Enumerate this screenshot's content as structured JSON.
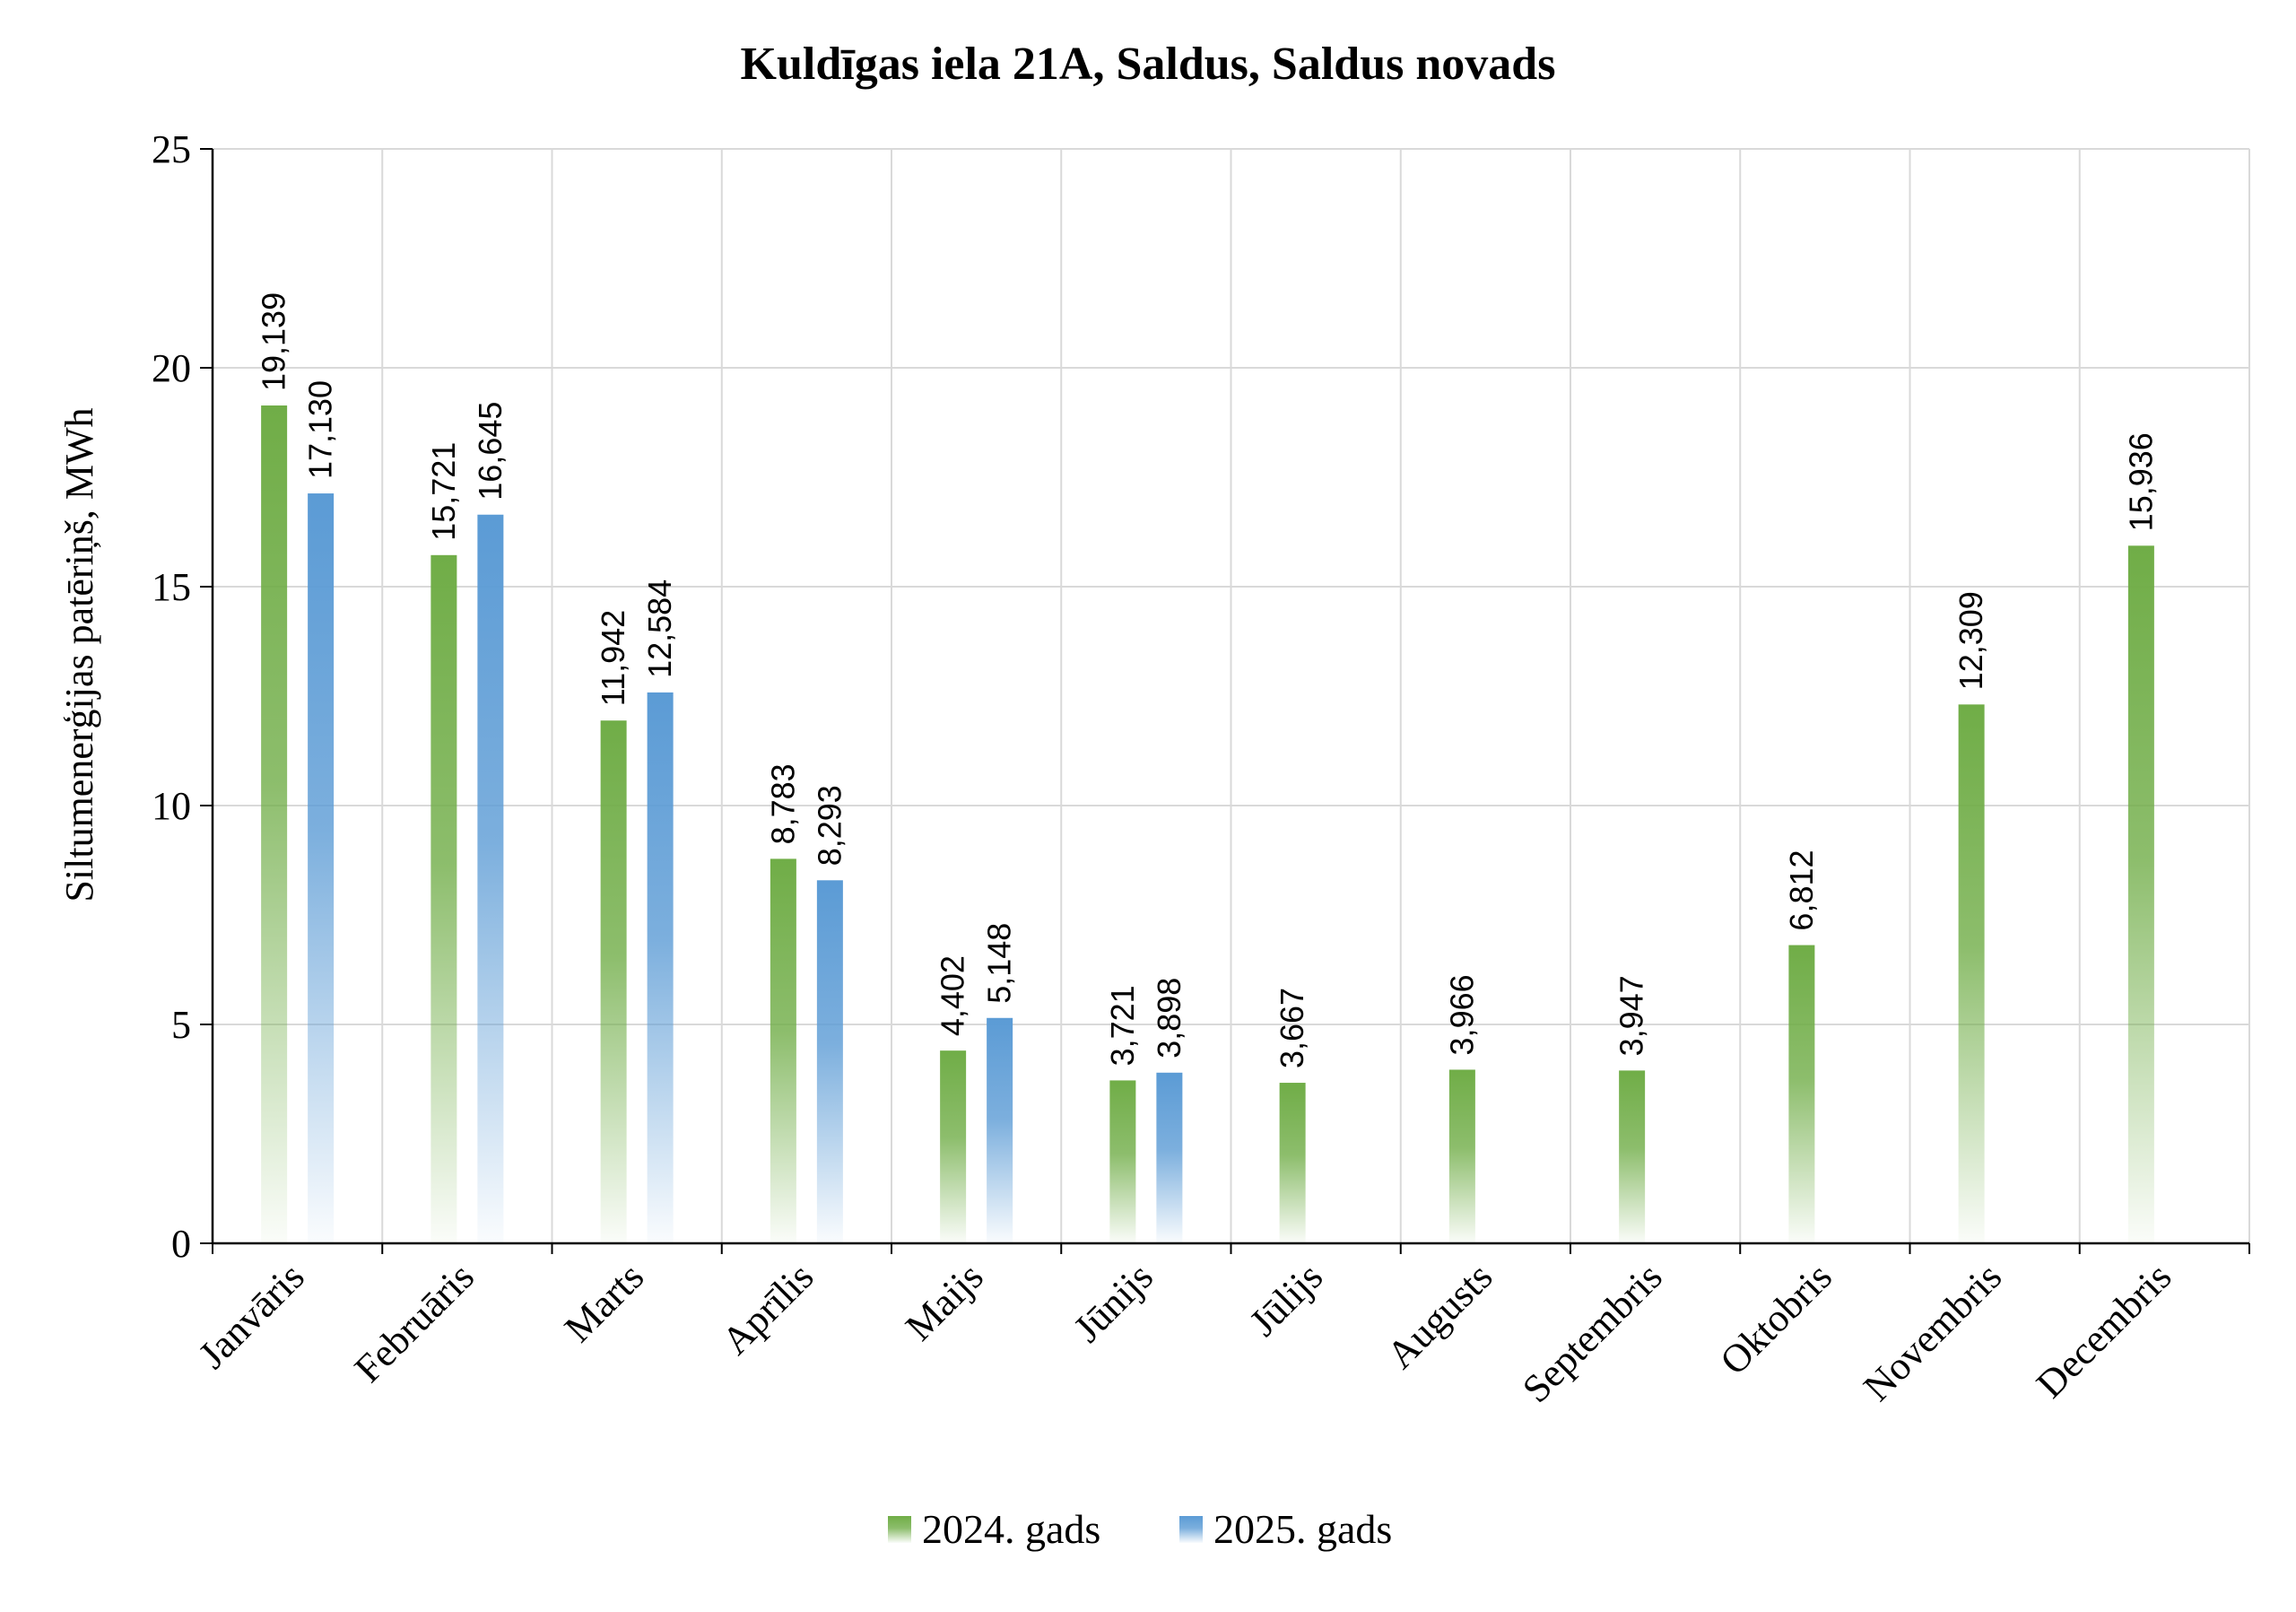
{
  "chart_data": {
    "type": "bar",
    "title": "Kuldīgas iela 21A, Saldus, Saldus novads",
    "xlabel": "",
    "ylabel": "Siltumenerģijas patēriņš, MWh",
    "ylim": [
      0,
      25
    ],
    "yticks": [
      "0",
      "5",
      "10",
      "15",
      "20",
      "25"
    ],
    "grid": true,
    "legend_position": "bottom",
    "categories": [
      "Janvāris",
      "Februāris",
      "Marts",
      "Aprīlis",
      "Maijs",
      "Jūnijs",
      "Jūlijs",
      "Augusts",
      "Septembris",
      "Oktobris",
      "Novembris",
      "Decembris"
    ],
    "series": [
      {
        "name": "2024. gads",
        "color": "#70ad47",
        "values": [
          19.139,
          15.721,
          11.942,
          8.783,
          4.402,
          3.721,
          3.667,
          3.966,
          3.947,
          6.812,
          12.309,
          15.936
        ],
        "labels": [
          "19,139",
          "15,721",
          "11,942",
          "8,783",
          "4,402",
          "3,721",
          "3,667",
          "3,966",
          "3,947",
          "6,812",
          "12,309",
          "15,936"
        ]
      },
      {
        "name": "2025. gads",
        "color": "#5b9bd5",
        "values": [
          17.13,
          16.645,
          12.584,
          8.293,
          5.148,
          3.898,
          null,
          null,
          null,
          null,
          null,
          null
        ],
        "labels": [
          "17,130",
          "16,645",
          "12,584",
          "8,293",
          "5,148",
          "3,898",
          "",
          "",
          "",
          "",
          "",
          ""
        ]
      }
    ]
  }
}
